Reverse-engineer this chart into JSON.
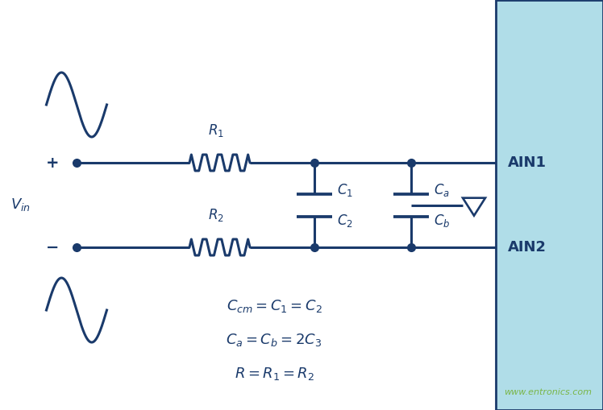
{
  "bg_color": "#ffffff",
  "line_color": "#1a3a6b",
  "chip_color": "#b0dde8",
  "chip_border_color": "#1a3a6b",
  "text_color": "#1a3a6b",
  "green_color": "#7ab648",
  "figsize": [
    7.48,
    5.09
  ],
  "dpi": 100,
  "formulas": [
    "$C_{cm} = C_1 = C_2$",
    "$C_a = C_b = 2C_3$",
    "$R = R_1 = R_2$"
  ],
  "labels": {
    "plus": "+",
    "minus": "−",
    "vin": "$V_{in}$",
    "R1": "$R_1$",
    "R2": "$R_2$",
    "C1": "$C_1$",
    "C2": "$C_2$",
    "Ca": "$C_a$",
    "Cb": "$C_b$",
    "AIN1": "AIN1",
    "AIN2": "AIN2",
    "website": "www.entronics.com"
  }
}
